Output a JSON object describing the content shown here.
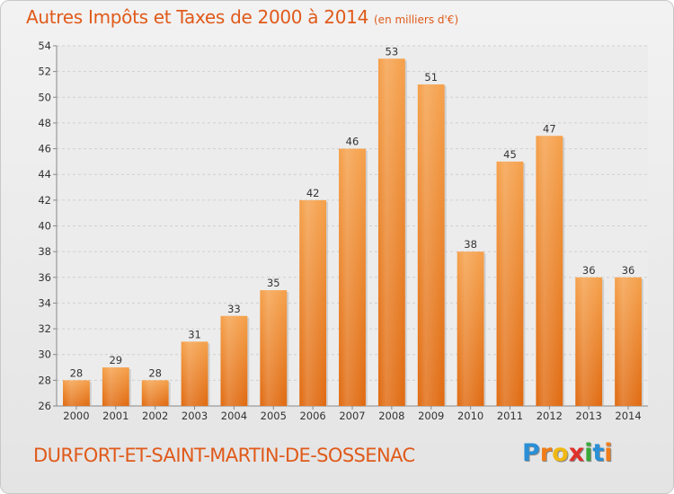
{
  "header": {
    "title": "Autres Impôts et Taxes de 2000 à 2014",
    "unit": "(en milliers d'€)"
  },
  "footer": {
    "commune": "DURFORT-ET-SAINT-MARTIN-DE-SOSSENAC",
    "logo_letters": [
      "P",
      "r",
      "o",
      "x",
      "i",
      "t",
      "i"
    ],
    "logo_colors": [
      "#2a8fd6",
      "#f07d1a",
      "#f0b814",
      "#e0302a",
      "#3aa83a",
      "#2a8fd6",
      "#f07d1a"
    ]
  },
  "chart_data": {
    "type": "bar",
    "title": "Autres Impôts et Taxes de 2000 à 2014",
    "categories": [
      "2000",
      "2001",
      "2002",
      "2003",
      "2004",
      "2005",
      "2006",
      "2007",
      "2008",
      "2009",
      "2010",
      "2011",
      "2012",
      "2013",
      "2014"
    ],
    "values": [
      28,
      29,
      28,
      31,
      33,
      35,
      42,
      46,
      53,
      51,
      38,
      45,
      47,
      36,
      36
    ],
    "ylim": [
      26,
      54
    ],
    "yticks": [
      26,
      28,
      30,
      32,
      34,
      36,
      38,
      40,
      42,
      44,
      46,
      48,
      50,
      52,
      54
    ],
    "grid": true,
    "bar_color_top": "#f5a04a",
    "bar_color_bottom": "#e06a10"
  }
}
